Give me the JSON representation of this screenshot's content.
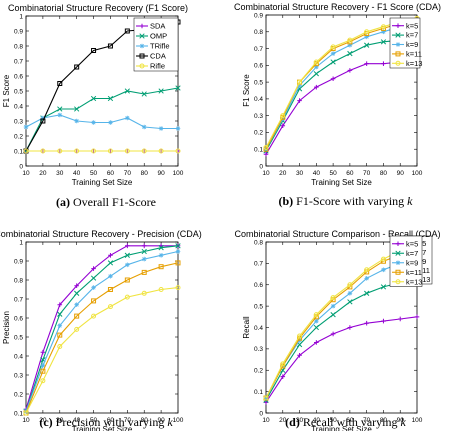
{
  "chart_data": [
    {
      "type": "line",
      "title": "Combinatorial Structure Recovery (F1 Score)",
      "xlabel": "Training Set Size",
      "ylabel": "F1 Score",
      "caption_tag": "(a)",
      "caption_text": "Overall F1-Score",
      "x": [
        10,
        20,
        30,
        40,
        50,
        60,
        70,
        80,
        90,
        100
      ],
      "xlim": [
        10,
        100
      ],
      "ylim": [
        0,
        1
      ],
      "xticks": [
        "10",
        "20",
        "30",
        "40",
        "50",
        "60",
        "70",
        "80",
        "90",
        "100"
      ],
      "yticks": [
        "0",
        "0.1",
        "0.2",
        "0.3",
        "0.4",
        "0.5",
        "0.6",
        "0.7",
        "0.8",
        "0.9",
        "1"
      ],
      "legend_position": "top-right",
      "series": [
        {
          "name": "SDA",
          "color": "#9400d3",
          "marker": "plus",
          "values": [
            0.1,
            0.1,
            0.1,
            0.1,
            0.1,
            0.1,
            0.1,
            0.1,
            0.1,
            0.1
          ]
        },
        {
          "name": "OMP",
          "color": "#009e73",
          "marker": "cross",
          "values": [
            0.1,
            0.32,
            0.38,
            0.38,
            0.45,
            0.45,
            0.5,
            0.48,
            0.5,
            0.52
          ]
        },
        {
          "name": "TRifle",
          "color": "#56b4e9",
          "marker": "star",
          "values": [
            0.26,
            0.32,
            0.34,
            0.3,
            0.29,
            0.29,
            0.32,
            0.26,
            0.25,
            0.25
          ]
        },
        {
          "name": "CDA",
          "color": "#000000",
          "marker": "square",
          "values": [
            0.1,
            0.3,
            0.55,
            0.66,
            0.77,
            0.8,
            0.9,
            0.91,
            0.96,
            0.96
          ]
        },
        {
          "name": "Rifle",
          "color": "#f0e442",
          "marker": "circle",
          "values": [
            0.1,
            0.1,
            0.1,
            0.1,
            0.1,
            0.1,
            0.1,
            0.1,
            0.1,
            0.1
          ]
        }
      ]
    },
    {
      "type": "line",
      "title": "Combinatorial Structure Recovery - F1 Score (CDA)",
      "xlabel": "Training Set Size",
      "ylabel": "F1 Score",
      "caption_tag": "(b)",
      "caption_text": "F1-Score with varying",
      "caption_var": "k",
      "x": [
        10,
        20,
        30,
        40,
        50,
        60,
        70,
        80,
        90,
        100
      ],
      "xlim": [
        10,
        100
      ],
      "ylim": [
        0,
        0.9
      ],
      "xticks": [
        "10",
        "20",
        "30",
        "40",
        "50",
        "60",
        "70",
        "80",
        "90",
        "100"
      ],
      "yticks": [
        "0",
        "0.1",
        "0.2",
        "0.3",
        "0.4",
        "0.5",
        "0.6",
        "0.7",
        "0.8",
        "0.9"
      ],
      "legend_position": "bottom-right",
      "series": [
        {
          "name": "k=5",
          "color": "#9400d3",
          "marker": "plus",
          "values": [
            0.07,
            0.24,
            0.39,
            0.47,
            0.52,
            0.57,
            0.61,
            0.61,
            0.62,
            0.63
          ]
        },
        {
          "name": "k=7",
          "color": "#009e73",
          "marker": "cross",
          "values": [
            0.09,
            0.27,
            0.46,
            0.55,
            0.62,
            0.67,
            0.72,
            0.74,
            0.75,
            0.76
          ]
        },
        {
          "name": "k=9",
          "color": "#56b4e9",
          "marker": "star",
          "values": [
            0.1,
            0.28,
            0.48,
            0.59,
            0.67,
            0.72,
            0.77,
            0.8,
            0.83,
            0.85
          ]
        },
        {
          "name": "k=11",
          "color": "#e69f00",
          "marker": "square",
          "values": [
            0.1,
            0.29,
            0.5,
            0.61,
            0.7,
            0.74,
            0.79,
            0.82,
            0.85,
            0.87
          ]
        },
        {
          "name": "k=13",
          "color": "#f0e442",
          "marker": "circle",
          "values": [
            0.11,
            0.3,
            0.5,
            0.62,
            0.71,
            0.75,
            0.8,
            0.83,
            0.86,
            0.88
          ]
        }
      ]
    },
    {
      "type": "line",
      "title": "Combinatorial Structure Recovery - Precision (CDA)",
      "xlabel": "Training Set Size",
      "ylabel": "Precision",
      "caption_tag": "(c)",
      "caption_text": "Precision with varying",
      "caption_var": "k",
      "x": [
        10,
        20,
        30,
        40,
        50,
        60,
        70,
        80,
        90,
        100
      ],
      "xlim": [
        10,
        100
      ],
      "ylim": [
        0.1,
        1
      ],
      "xticks": [
        "10",
        "20",
        "30",
        "40",
        "50",
        "60",
        "70",
        "80",
        "90",
        "100"
      ],
      "yticks": [
        "0.1",
        "0.2",
        "0.3",
        "0.4",
        "0.5",
        "0.6",
        "0.7",
        "0.8",
        "0.9",
        "1"
      ],
      "legend_position": "top-right",
      "series": [
        {
          "name": "k=5",
          "color": "#9400d3",
          "marker": "plus",
          "values": [
            0.12,
            0.42,
            0.67,
            0.77,
            0.86,
            0.93,
            0.98,
            0.98,
            0.98,
            0.98
          ]
        },
        {
          "name": "k=7",
          "color": "#009e73",
          "marker": "cross",
          "values": [
            0.11,
            0.38,
            0.62,
            0.73,
            0.81,
            0.89,
            0.93,
            0.95,
            0.97,
            0.98
          ]
        },
        {
          "name": "k=9",
          "color": "#56b4e9",
          "marker": "star",
          "values": [
            0.11,
            0.35,
            0.56,
            0.67,
            0.76,
            0.82,
            0.88,
            0.91,
            0.93,
            0.95
          ]
        },
        {
          "name": "k=11",
          "color": "#e69f00",
          "marker": "square",
          "values": [
            0.1,
            0.32,
            0.51,
            0.61,
            0.69,
            0.75,
            0.8,
            0.84,
            0.87,
            0.89
          ]
        },
        {
          "name": "k=13",
          "color": "#f0e442",
          "marker": "circle",
          "values": [
            0.1,
            0.27,
            0.45,
            0.54,
            0.61,
            0.66,
            0.71,
            0.73,
            0.75,
            0.76
          ]
        }
      ]
    },
    {
      "type": "line",
      "title": "Combinatorial Structure Comparison - Recall (CDA)",
      "xlabel": "Training Set Size",
      "ylabel": "Recall",
      "caption_tag": "(d)",
      "caption_text": "Recall with varying",
      "caption_var": "k",
      "x": [
        10,
        20,
        30,
        40,
        50,
        60,
        70,
        80,
        90,
        100
      ],
      "xlim": [
        10,
        100
      ],
      "ylim": [
        0,
        0.8
      ],
      "xticks": [
        "10",
        "20",
        "30",
        "40",
        "50",
        "60",
        "70",
        "80",
        "90",
        "100"
      ],
      "yticks": [
        "0",
        "0.1",
        "0.2",
        "0.3",
        "0.4",
        "0.5",
        "0.6",
        "0.7",
        "0.8"
      ],
      "legend_position": "bottom-right",
      "series": [
        {
          "name": "k=5",
          "color": "#9400d3",
          "marker": "plus",
          "values": [
            0.05,
            0.17,
            0.27,
            0.33,
            0.37,
            0.4,
            0.42,
            0.43,
            0.44,
            0.45
          ]
        },
        {
          "name": "k=7",
          "color": "#009e73",
          "marker": "cross",
          "values": [
            0.06,
            0.2,
            0.32,
            0.4,
            0.46,
            0.52,
            0.56,
            0.59,
            0.61,
            0.63
          ]
        },
        {
          "name": "k=9",
          "color": "#56b4e9",
          "marker": "star",
          "values": [
            0.07,
            0.22,
            0.34,
            0.43,
            0.5,
            0.56,
            0.63,
            0.67,
            0.7,
            0.73
          ]
        },
        {
          "name": "k=11",
          "color": "#e69f00",
          "marker": "square",
          "values": [
            0.07,
            0.22,
            0.35,
            0.45,
            0.53,
            0.59,
            0.66,
            0.71,
            0.74,
            0.77
          ]
        },
        {
          "name": "k=13",
          "color": "#f0e442",
          "marker": "circle",
          "values": [
            0.07,
            0.23,
            0.36,
            0.46,
            0.54,
            0.6,
            0.67,
            0.72,
            0.76,
            0.79
          ]
        }
      ]
    }
  ]
}
